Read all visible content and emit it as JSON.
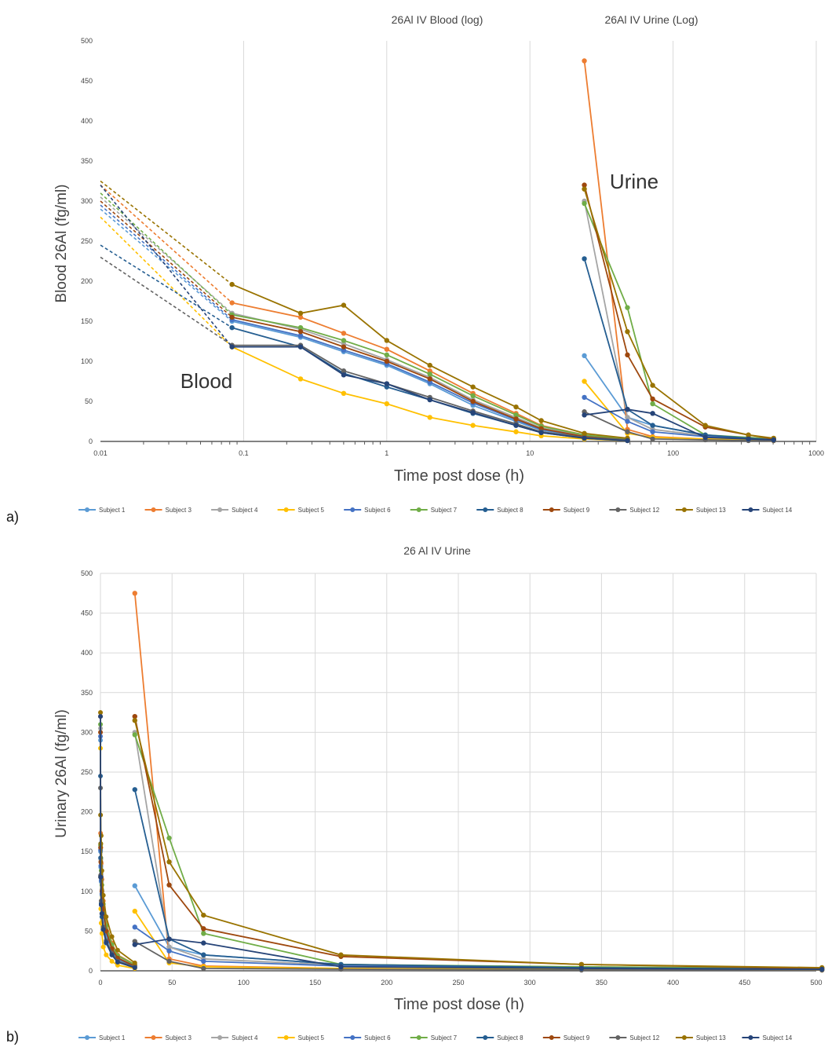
{
  "figure": {
    "label_a": "a)",
    "label_b": "b)"
  },
  "colors": {
    "Subject 1": "#5b9bd5",
    "Subject 3": "#ed7d31",
    "Subject 4": "#a5a5a5",
    "Subject 5": "#ffc000",
    "Subject 6": "#4472c4",
    "Subject 7": "#70ad47",
    "Subject 8": "#255e91",
    "Subject 9": "#9e480e",
    "Subject 12": "#636363",
    "Subject 13": "#997300",
    "Subject 14": "#264478",
    "grid": "#d9d9d9",
    "axis": "#595959"
  },
  "chart_data": [
    {
      "type": "line",
      "title_left": "26Al IV Blood (log)",
      "title_right": "26Al IV Urine (Log)",
      "xlabel": "Time post dose (h)",
      "ylabel": "Blood 26Al (fg/ml)",
      "xscale": "log",
      "xlim": [
        0.01,
        1000
      ],
      "ylim": [
        0,
        500
      ],
      "x_ticks": [
        "0.01",
        "0.1",
        "1",
        "10",
        "100",
        "1000"
      ],
      "y_ticks": [
        "0",
        "50",
        "100",
        "150",
        "200",
        "250",
        "300",
        "350",
        "400",
        "450",
        "500"
      ],
      "annotations": [
        "Blood",
        "Urine"
      ],
      "legend": "bottom",
      "grid": "vertical",
      "blood_x": [
        0.01,
        0.083,
        0.25,
        0.5,
        1,
        2,
        4,
        8,
        12,
        24,
        48
      ],
      "blood_series": [
        {
          "name": "Subject 1",
          "values": [
            290,
            150,
            130,
            112,
            95,
            72,
            45,
            25,
            14,
            6,
            2
          ]
        },
        {
          "name": "Subject 3",
          "values": [
            320,
            173,
            155,
            135,
            115,
            88,
            60,
            35,
            20,
            8,
            3
          ]
        },
        {
          "name": "Subject 4",
          "values": [
            305,
            160,
            140,
            122,
            102,
            80,
            52,
            30,
            17,
            7,
            2
          ]
        },
        {
          "name": "Subject 5",
          "values": [
            280,
            118,
            78,
            60,
            47,
            30,
            20,
            12,
            7,
            3,
            1
          ]
        },
        {
          "name": "Subject 6",
          "values": [
            295,
            152,
            132,
            114,
            97,
            74,
            48,
            27,
            15,
            6,
            2
          ]
        },
        {
          "name": "Subject 7",
          "values": [
            310,
            158,
            142,
            126,
            108,
            84,
            57,
            33,
            19,
            8,
            3
          ]
        },
        {
          "name": "Subject 8",
          "values": [
            245,
            142,
            118,
            85,
            68,
            52,
            35,
            20,
            11,
            4,
            1
          ]
        },
        {
          "name": "Subject 9",
          "values": [
            300,
            155,
            137,
            118,
            100,
            78,
            50,
            28,
            16,
            6,
            2
          ]
        },
        {
          "name": "Subject 12",
          "values": [
            230,
            120,
            120,
            88,
            72,
            55,
            38,
            22,
            12,
            5,
            2
          ]
        },
        {
          "name": "Subject 13",
          "values": [
            325,
            196,
            160,
            170,
            126,
            95,
            68,
            43,
            26,
            10,
            4
          ]
        },
        {
          "name": "Subject 14",
          "values": [
            320,
            118,
            118,
            83,
            72,
            52,
            36,
            20,
            11,
            4,
            1
          ]
        }
      ],
      "urine_series": [
        {
          "name": "Subject 1",
          "x": [
            24,
            48,
            72,
            168,
            336,
            504
          ],
          "values": [
            107,
            30,
            20,
            8,
            4,
            2
          ]
        },
        {
          "name": "Subject 3",
          "x": [
            24,
            48,
            72,
            168,
            336,
            504
          ],
          "values": [
            475,
            15,
            6,
            3,
            2,
            1
          ]
        },
        {
          "name": "Subject 4",
          "x": [
            24,
            48,
            72,
            168,
            336,
            504
          ],
          "values": [
            300,
            30,
            15,
            7,
            4,
            2
          ]
        },
        {
          "name": "Subject 5",
          "x": [
            24,
            48,
            72,
            168,
            336,
            504
          ],
          "values": [
            75,
            10,
            5,
            3,
            2,
            1
          ]
        },
        {
          "name": "Subject 6",
          "x": [
            24,
            48,
            72,
            168,
            336,
            504
          ],
          "values": [
            55,
            25,
            12,
            6,
            3,
            2
          ]
        },
        {
          "name": "Subject 7",
          "x": [
            24,
            48,
            72,
            168,
            336,
            504
          ],
          "values": [
            297,
            167,
            47,
            8,
            5,
            3
          ]
        },
        {
          "name": "Subject 8",
          "x": [
            24,
            48,
            72,
            168,
            336,
            504
          ],
          "values": [
            228,
            40,
            20,
            8,
            4,
            2
          ]
        },
        {
          "name": "Subject 9",
          "x": [
            24,
            48,
            72,
            168,
            336,
            504
          ],
          "values": [
            320,
            108,
            53,
            18,
            8,
            3
          ]
        },
        {
          "name": "Subject 12",
          "x": [
            24,
            48,
            72,
            168,
            336,
            504
          ],
          "values": [
            37,
            12,
            3,
            2,
            1,
            1
          ]
        },
        {
          "name": "Subject 13",
          "x": [
            24,
            48,
            72,
            168,
            336,
            504
          ],
          "values": [
            315,
            137,
            70,
            20,
            8,
            4
          ]
        },
        {
          "name": "Subject 14",
          "x": [
            24,
            48,
            72,
            168,
            336,
            504
          ],
          "values": [
            33,
            40,
            35,
            5,
            3,
            2
          ]
        }
      ]
    },
    {
      "type": "line",
      "title": "26 Al IV Urine",
      "xlabel": "Time post dose (h)",
      "ylabel": "Urinary 26Al (fg/ml)",
      "xscale": "linear",
      "xlim": [
        0,
        500
      ],
      "ylim": [
        0,
        500
      ],
      "x_ticks": [
        "0",
        "50",
        "100",
        "150",
        "200",
        "250",
        "300",
        "350",
        "400",
        "450",
        "500"
      ],
      "y_ticks": [
        "0",
        "50",
        "100",
        "150",
        "200",
        "250",
        "300",
        "350",
        "400",
        "450",
        "500"
      ],
      "legend": "bottom",
      "grid": "both"
    }
  ]
}
